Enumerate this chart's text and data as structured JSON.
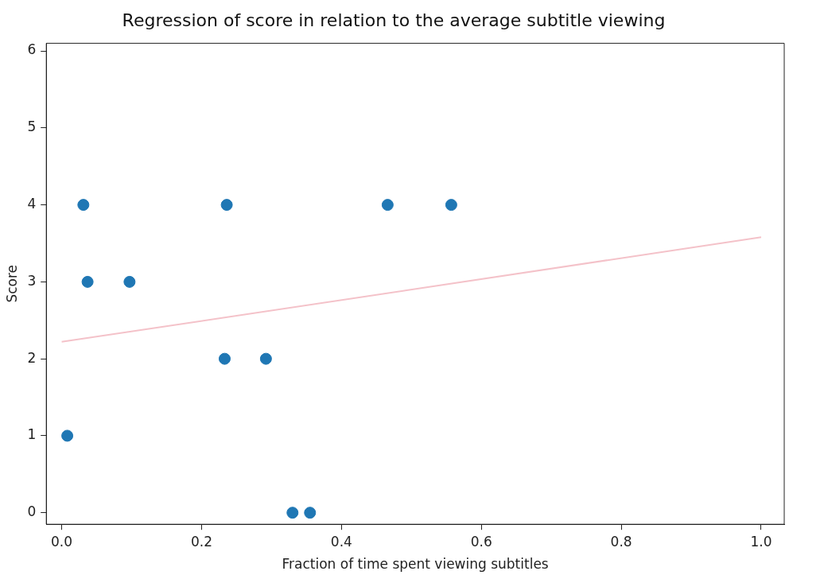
{
  "chart_data": {
    "type": "scatter",
    "title": "Regression of score in relation to the average subtitle viewing",
    "xlabel": "Fraction of time spent viewing subtitles",
    "ylabel": "Score",
    "xlim": [
      -0.022,
      1.033
    ],
    "ylim": [
      -0.15,
      6.1
    ],
    "xticks": [
      {
        "value": 0,
        "label": "0.0"
      },
      {
        "value": 0.2,
        "label": "0.2"
      },
      {
        "value": 0.4,
        "label": "0.4"
      },
      {
        "value": 0.6,
        "label": "0.6"
      },
      {
        "value": 0.8,
        "label": "0.8"
      },
      {
        "value": 1,
        "label": "1.0"
      }
    ],
    "yticks": [
      0,
      1,
      2,
      3,
      4,
      5,
      6
    ],
    "grid": false,
    "series": [
      {
        "marker": "circle",
        "color": "#1f77b4",
        "x": [
          0.008,
          0.031,
          0.037,
          0.097,
          0.233,
          0.236,
          0.292,
          0.33,
          0.355,
          0.466,
          0.557
        ],
        "values": [
          1,
          4,
          3,
          3,
          2,
          4,
          2,
          0,
          0,
          4,
          4
        ]
      },
      {
        "type": "line",
        "marker": "none",
        "color": "#f4c2c9",
        "x": [
          0,
          1
        ],
        "values": [
          2.22,
          3.58
        ]
      }
    ]
  }
}
